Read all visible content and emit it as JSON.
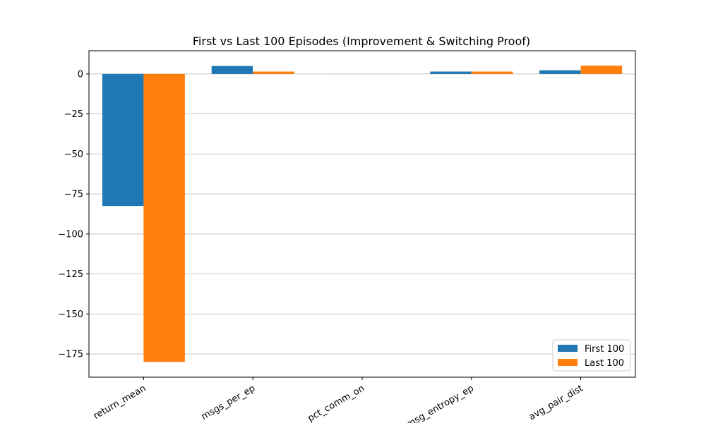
{
  "chart_data": {
    "type": "bar",
    "title": "First vs Last 100 Episodes (Improvement & Switching Proof)",
    "xlabel": "",
    "ylabel": "",
    "categories": [
      "return_mean",
      "msgs_per_ep",
      "pct_comm_on",
      "msg_entropy_ep",
      "avg_pair_dist"
    ],
    "series": [
      {
        "name": "First 100",
        "color": "#1f77b4",
        "values": [
          -82.5,
          5.0,
          0.0,
          1.5,
          2.3
        ]
      },
      {
        "name": "Last 100",
        "color": "#ff7f0e",
        "values": [
          -180.0,
          1.5,
          0.0,
          1.5,
          5.2
        ]
      }
    ],
    "ylim": [
      -189.5,
      14.5
    ],
    "yticks": [
      0,
      -25,
      -50,
      -75,
      -100,
      -125,
      -150,
      -175
    ],
    "ytick_labels": [
      "0",
      "−25",
      "−50",
      "−75",
      "−100",
      "−125",
      "−150",
      "−175"
    ],
    "grid": "y",
    "legend_position": "lower right"
  }
}
